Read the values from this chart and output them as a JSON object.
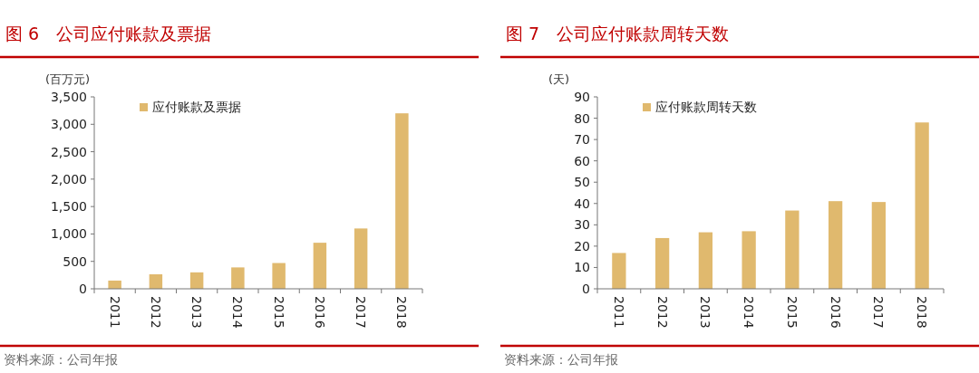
{
  "chart_data": [
    {
      "type": "bar",
      "title": "图 6　公司应付账款及票据",
      "ylabel": "(百万元)",
      "categories": [
        "2011",
        "2012",
        "2013",
        "2014",
        "2015",
        "2016",
        "2017",
        "2018"
      ],
      "series": [
        {
          "name": "应付账款及票据",
          "color": "#e0b96e",
          "values": [
            150,
            265,
            300,
            390,
            470,
            840,
            1100,
            3200
          ]
        }
      ],
      "ylim": [
        0,
        3500
      ],
      "yticks": [
        0,
        {
          "value": 500,
          "label": "500"
        },
        {
          "value": 1000,
          "label": "1,000"
        },
        {
          "value": 1500,
          "label": "1,500"
        },
        {
          "value": 2000,
          "label": "2,000"
        },
        {
          "value": 2500,
          "label": "2,500"
        },
        {
          "value": 3000,
          "label": "3,000"
        },
        {
          "value": 3500,
          "label": "3,500"
        }
      ],
      "legend": "top left",
      "annotations": [
        "资料来源：公司年报"
      ]
    },
    {
      "type": "bar",
      "title": "图 7　公司应付账款周转天数",
      "ylabel": "(天)",
      "categories": [
        "2011",
        "2012",
        "2013",
        "2014",
        "2015",
        "2016",
        "2017",
        "2018"
      ],
      "series": [
        {
          "name": "应付账款周转天数",
          "color": "#e0b96e",
          "values": [
            16.8,
            23.8,
            26.5,
            27,
            36.7,
            41.1,
            40.7,
            78
          ]
        }
      ],
      "ylim": [
        0,
        90
      ],
      "yticks": [
        0,
        10,
        20,
        30,
        40,
        50,
        60,
        70,
        80,
        90
      ],
      "legend": "top left",
      "annotations": [
        "资料来源：公司年报"
      ]
    }
  ]
}
